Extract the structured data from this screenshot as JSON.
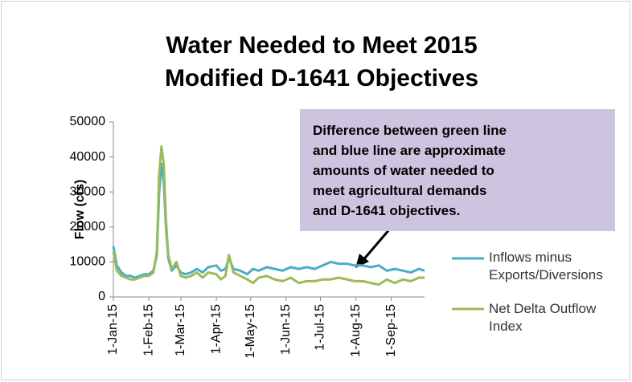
{
  "chart_data": {
    "type": "line",
    "title": [
      "Water Needed to Meet  2015",
      "Modified D-1641 Objectives"
    ],
    "ylabel": "Flow (cfs)",
    "annotation": [
      "Difference between green line",
      "and blue line are approximate",
      "amounts of water needed to",
      "meet agricultural demands",
      "and D-1641 objectives."
    ],
    "x": [
      "2015-01-01",
      "2015-01-04",
      "2015-01-08",
      "2015-01-12",
      "2015-01-16",
      "2015-01-20",
      "2015-01-24",
      "2015-01-28",
      "2015-02-01",
      "2015-02-05",
      "2015-02-08",
      "2015-02-10",
      "2015-02-12",
      "2015-02-14",
      "2015-02-16",
      "2015-02-18",
      "2015-02-21",
      "2015-02-25",
      "2015-03-01",
      "2015-03-05",
      "2015-03-10",
      "2015-03-15",
      "2015-03-20",
      "2015-03-25",
      "2015-04-01",
      "2015-04-05",
      "2015-04-09",
      "2015-04-12",
      "2015-04-16",
      "2015-04-22",
      "2015-04-28",
      "2015-05-03",
      "2015-05-08",
      "2015-05-15",
      "2015-05-22",
      "2015-05-29",
      "2015-06-05",
      "2015-06-12",
      "2015-06-19",
      "2015-06-26",
      "2015-07-03",
      "2015-07-10",
      "2015-07-17",
      "2015-07-24",
      "2015-07-31",
      "2015-08-07",
      "2015-08-14",
      "2015-08-21",
      "2015-08-28",
      "2015-09-04",
      "2015-09-11",
      "2015-09-18",
      "2015-09-25",
      "2015-09-30"
    ],
    "series": [
      {
        "name": "Inflows minus Exports/Diversions",
        "color": "#4bacc6",
        "values": [
          14500,
          9000,
          7000,
          6000,
          6000,
          5500,
          6000,
          6500,
          6500,
          7500,
          12000,
          30000,
          38000,
          33000,
          20000,
          11000,
          7500,
          9000,
          7000,
          6500,
          7000,
          8000,
          7000,
          8500,
          9000,
          7500,
          8000,
          11000,
          8000,
          7500,
          6500,
          8000,
          7500,
          8500,
          8000,
          7500,
          8500,
          8000,
          8500,
          8000,
          9000,
          10000,
          9500,
          9500,
          9000,
          9000,
          8500,
          9000,
          7500,
          8000,
          7500,
          7000,
          8000,
          7500
        ]
      },
      {
        "name": "Net Delta Outflow Index",
        "color": "#9bbb59",
        "values": [
          13000,
          7500,
          6000,
          5500,
          5000,
          5000,
          5500,
          6000,
          6000,
          7000,
          13000,
          35000,
          43000,
          38000,
          22000,
          12000,
          8000,
          10000,
          6000,
          5500,
          6000,
          7000,
          5500,
          7000,
          6500,
          5000,
          6000,
          12000,
          7000,
          6000,
          5000,
          4000,
          5500,
          6000,
          5000,
          4500,
          5500,
          4000,
          4500,
          4500,
          5000,
          5000,
          5500,
          5000,
          4500,
          4500,
          4000,
          3500,
          5000,
          4000,
          5000,
          4500,
          5500,
          5500
        ]
      }
    ],
    "xlim": [
      "2015-01-01",
      "2015-09-30"
    ],
    "xticks": [
      {
        "value": "2015-01-01",
        "label": "1-Jan-15"
      },
      {
        "value": "2015-02-01",
        "label": "1-Feb-15"
      },
      {
        "value": "2015-03-01",
        "label": "1-Mar-15"
      },
      {
        "value": "2015-04-01",
        "label": "1-Apr-15"
      },
      {
        "value": "2015-05-01",
        "label": "1-May-15"
      },
      {
        "value": "2015-06-01",
        "label": "1-Jun-15"
      },
      {
        "value": "2015-07-01",
        "label": "1-Jul-15"
      },
      {
        "value": "2015-08-01",
        "label": "1-Aug-15"
      },
      {
        "value": "2015-09-01",
        "label": "1-Sep-15"
      }
    ],
    "ylim": [
      0,
      50000
    ],
    "yticks": [
      0,
      10000,
      20000,
      30000,
      40000,
      50000
    ],
    "grid": false
  }
}
